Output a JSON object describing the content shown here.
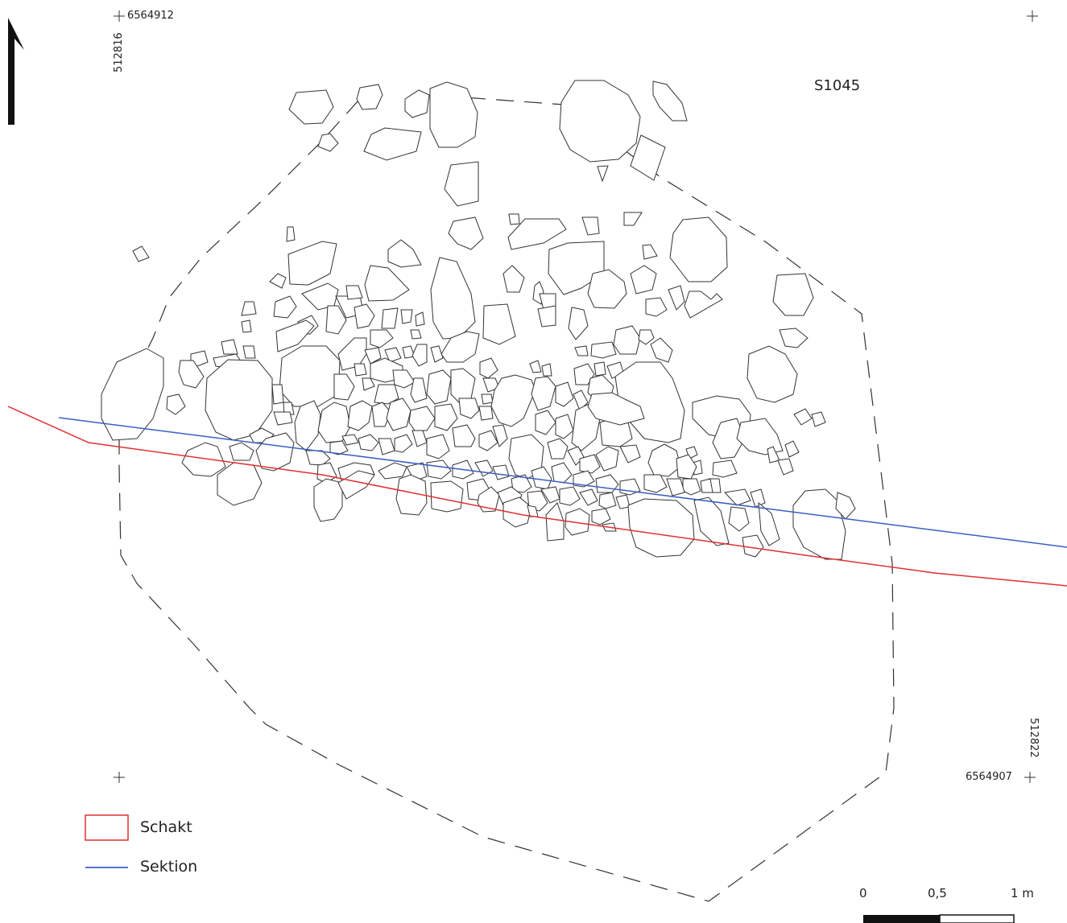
{
  "feature": {
    "id": "S1045"
  },
  "coordinates": {
    "top_left_north": "6564912",
    "top_left_east": "512816",
    "bottom_right_north": "6564907",
    "bottom_right_east": "512822"
  },
  "legend": {
    "items": [
      {
        "label": "Schakt",
        "symbol": "box",
        "color": "#e03030"
      },
      {
        "label": "Sektion",
        "symbol": "line",
        "color": "#3a5fc0"
      }
    ]
  },
  "scale_bar": {
    "labels": [
      "0",
      "0,5",
      "1 m"
    ]
  },
  "north_arrow": {
    "icon": "north-arrow-icon"
  },
  "colors": {
    "schakt": "#e03030",
    "sektion": "#3a5fc0",
    "stone_outline": "#333333",
    "boundary": "#333333"
  }
}
